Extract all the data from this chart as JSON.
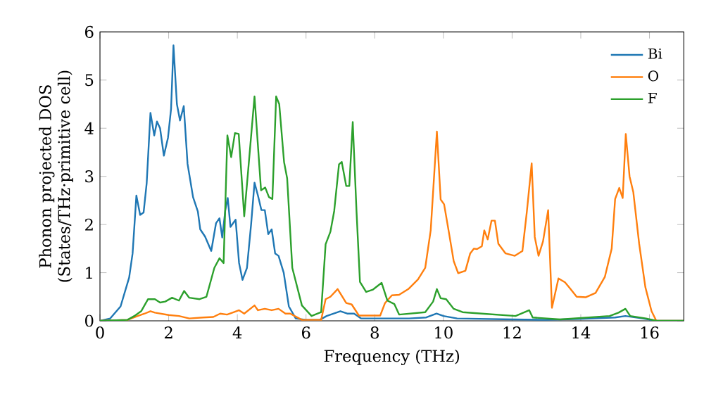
{
  "chart_data": {
    "type": "line",
    "xlabel": "Frequency (THz)",
    "ylabel": "Phonon projected DOS\n(States/THz·primitive cell)",
    "xlim": [
      0,
      17
    ],
    "ylim": [
      0,
      6
    ],
    "xticks": [
      0,
      2,
      4,
      6,
      8,
      10,
      12,
      14,
      16
    ],
    "yticks": [
      0,
      1,
      2,
      3,
      4,
      5,
      6
    ],
    "legend": "top right",
    "grid": false,
    "marker": "none",
    "line_style": "solid",
    "series": [
      {
        "name": "Bi",
        "color": "#1f77b4",
        "x": [
          0,
          0.3,
          0.6,
          0.85,
          0.95,
          1.06,
          1.17,
          1.27,
          1.36,
          1.47,
          1.58,
          1.66,
          1.75,
          1.86,
          1.98,
          2.07,
          2.14,
          2.24,
          2.33,
          2.44,
          2.55,
          2.71,
          2.85,
          2.92,
          3.06,
          3.24,
          3.38,
          3.48,
          3.56,
          3.65,
          3.72,
          3.8,
          3.95,
          4.05,
          4.15,
          4.28,
          4.4,
          4.5,
          4.6,
          4.7,
          4.8,
          4.9,
          5.0,
          5.1,
          5.2,
          5.35,
          5.5,
          5.7,
          6.0,
          6.4,
          6.6,
          6.8,
          7.0,
          7.2,
          7.4,
          7.6,
          8.0,
          9.0,
          9.5,
          9.8,
          10.0,
          10.4,
          12,
          13,
          14,
          15,
          15.3,
          15.8,
          16.2,
          17
        ],
        "values": [
          0,
          0.05,
          0.3,
          0.9,
          1.4,
          2.6,
          2.2,
          2.25,
          2.86,
          4.32,
          3.85,
          4.14,
          4.0,
          3.43,
          3.8,
          4.4,
          5.72,
          4.5,
          4.16,
          4.46,
          3.26,
          2.57,
          2.27,
          1.9,
          1.75,
          1.45,
          2.03,
          2.13,
          1.73,
          2.3,
          2.55,
          1.95,
          2.1,
          1.2,
          0.85,
          1.1,
          2.0,
          2.87,
          2.6,
          2.3,
          2.3,
          1.8,
          1.9,
          1.4,
          1.35,
          1.0,
          0.3,
          0.05,
          0.02,
          0.02,
          0.1,
          0.15,
          0.2,
          0.15,
          0.15,
          0.05,
          0.05,
          0.05,
          0.07,
          0.15,
          0.1,
          0.05,
          0.03,
          0.02,
          0.04,
          0.07,
          0.1,
          0.05,
          0,
          0
        ]
      },
      {
        "name": "O",
        "color": "#ff7f0e",
        "x": [
          0,
          0.8,
          1.1,
          1.3,
          1.47,
          1.6,
          2.0,
          2.3,
          2.6,
          3.0,
          3.3,
          3.5,
          3.7,
          3.9,
          4.05,
          4.2,
          4.5,
          4.6,
          4.8,
          5.0,
          5.2,
          5.4,
          5.54,
          5.88,
          6.44,
          6.57,
          6.71,
          6.92,
          7.06,
          7.17,
          7.33,
          7.54,
          8.16,
          8.3,
          8.5,
          8.71,
          8.98,
          9.26,
          9.47,
          9.63,
          9.81,
          9.92,
          10.02,
          10.15,
          10.3,
          10.43,
          10.64,
          10.78,
          10.89,
          10.98,
          11.12,
          11.19,
          11.29,
          11.4,
          11.5,
          11.6,
          11.81,
          12.08,
          12.3,
          12.43,
          12.57,
          12.66,
          12.77,
          12.9,
          13.05,
          13.16,
          13.35,
          13.54,
          13.68,
          13.88,
          14.15,
          14.43,
          14.7,
          14.9,
          15.0,
          15.12,
          15.22,
          15.31,
          15.42,
          15.53,
          15.7,
          15.88,
          16.06,
          16.2,
          17
        ],
        "values": [
          0,
          0.02,
          0.1,
          0.15,
          0.2,
          0.17,
          0.12,
          0.1,
          0.05,
          0.07,
          0.08,
          0.15,
          0.13,
          0.18,
          0.22,
          0.15,
          0.32,
          0.22,
          0.25,
          0.22,
          0.25,
          0.15,
          0.15,
          0.02,
          0.02,
          0.45,
          0.5,
          0.66,
          0.5,
          0.37,
          0.34,
          0.11,
          0.11,
          0.37,
          0.53,
          0.54,
          0.66,
          0.86,
          1.1,
          1.88,
          3.93,
          2.52,
          2.42,
          1.88,
          1.24,
          0.99,
          1.04,
          1.4,
          1.5,
          1.49,
          1.55,
          1.88,
          1.69,
          2.08,
          2.08,
          1.6,
          1.4,
          1.35,
          1.45,
          2.27,
          3.27,
          1.74,
          1.35,
          1.65,
          2.3,
          0.27,
          0.88,
          0.8,
          0.68,
          0.5,
          0.49,
          0.58,
          0.91,
          1.5,
          2.53,
          2.76,
          2.55,
          3.88,
          3.0,
          2.67,
          1.6,
          0.7,
          0.2,
          0,
          0
        ]
      },
      {
        "name": "F",
        "color": "#2ca02c",
        "x": [
          0,
          0.8,
          1.0,
          1.2,
          1.4,
          1.6,
          1.75,
          1.9,
          2.1,
          2.3,
          2.45,
          2.6,
          2.9,
          3.1,
          3.33,
          3.48,
          3.6,
          3.71,
          3.82,
          3.93,
          4.04,
          4.2,
          4.5,
          4.69,
          4.81,
          4.92,
          5.02,
          5.13,
          5.22,
          5.36,
          5.45,
          5.6,
          5.88,
          6.16,
          6.44,
          6.57,
          6.71,
          6.82,
          6.96,
          7.04,
          7.17,
          7.26,
          7.36,
          7.47,
          7.57,
          7.75,
          7.95,
          8.2,
          8.37,
          8.57,
          8.71,
          9.47,
          9.7,
          9.81,
          9.92,
          10.08,
          10.3,
          10.56,
          11.12,
          12.1,
          12.5,
          12.6,
          13.4,
          14.84,
          15.1,
          15.3,
          15.44,
          15.9,
          16.2,
          17
        ],
        "values": [
          0,
          0.02,
          0.1,
          0.2,
          0.45,
          0.45,
          0.38,
          0.4,
          0.48,
          0.42,
          0.62,
          0.48,
          0.45,
          0.5,
          1.1,
          1.3,
          1.2,
          3.85,
          3.4,
          3.9,
          3.88,
          2.17,
          4.66,
          2.71,
          2.77,
          2.57,
          2.53,
          4.66,
          4.5,
          3.3,
          2.96,
          1.1,
          0.32,
          0.1,
          0.18,
          1.59,
          1.85,
          2.28,
          3.25,
          3.3,
          2.8,
          2.8,
          4.13,
          2.27,
          0.81,
          0.6,
          0.65,
          0.79,
          0.42,
          0.35,
          0.13,
          0.18,
          0.4,
          0.66,
          0.47,
          0.45,
          0.25,
          0.18,
          0.15,
          0.1,
          0.22,
          0.07,
          0.03,
          0.1,
          0.17,
          0.25,
          0.1,
          0.05,
          0,
          0
        ]
      }
    ]
  }
}
